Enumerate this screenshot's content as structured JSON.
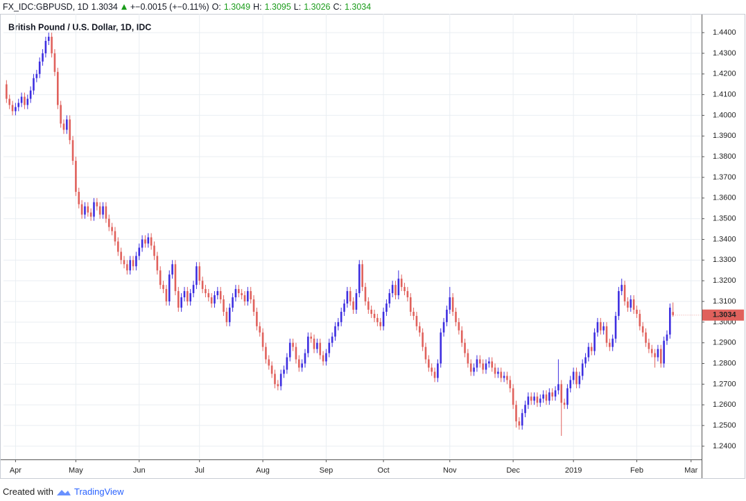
{
  "header": {
    "symbol": "FX_IDC:GBPUSD, 1D",
    "change": "+−0.0015 (+−0.11%)",
    "o_label": "O:",
    "h_label": "H:",
    "l_label": "L:",
    "c_label": "C:"
  },
  "footer": {
    "text": "Created with",
    "brand": "TradingView"
  },
  "chart_data": {
    "type": "candlestick",
    "title": "British Pound / U.S. Dollar, 1D, IDC",
    "up_color": "#3d2ee0",
    "down_color": "#e0615c",
    "grid": true,
    "xlim": [
      -1,
      230.5
    ],
    "ylim": [
      1.2336,
      1.4484
    ],
    "xticks": [
      {
        "value": 3,
        "label": "Apr"
      },
      {
        "value": 23,
        "label": "May"
      },
      {
        "value": 44,
        "label": "Jun"
      },
      {
        "value": 64,
        "label": "Jul"
      },
      {
        "value": 85,
        "label": "Aug"
      },
      {
        "value": 106,
        "label": "Sep"
      },
      {
        "value": 125,
        "label": "Oct"
      },
      {
        "value": 147,
        "label": "Nov"
      },
      {
        "value": 168,
        "label": "Dec"
      },
      {
        "value": 188,
        "label": "2019"
      },
      {
        "value": 209,
        "label": "Feb"
      },
      {
        "value": 227,
        "label": "Mar"
      }
    ],
    "yticks": [
      {
        "value": 1.24,
        "label": "1.2400"
      },
      {
        "value": 1.25,
        "label": "1.2500"
      },
      {
        "value": 1.26,
        "label": "1.2600"
      },
      {
        "value": 1.27,
        "label": "1.2700"
      },
      {
        "value": 1.28,
        "label": "1.2800"
      },
      {
        "value": 1.29,
        "label": "1.2900"
      },
      {
        "value": 1.3,
        "label": "1.3000"
      },
      {
        "value": 1.31,
        "label": "1.3100"
      },
      {
        "value": 1.32,
        "label": "1.3200"
      },
      {
        "value": 1.33,
        "label": "1.3300"
      },
      {
        "value": 1.34,
        "label": "1.3400"
      },
      {
        "value": 1.35,
        "label": "1.3500"
      },
      {
        "value": 1.36,
        "label": "1.3600"
      },
      {
        "value": 1.37,
        "label": "1.3700"
      },
      {
        "value": 1.38,
        "label": "1.3800"
      },
      {
        "value": 1.39,
        "label": "1.3900"
      },
      {
        "value": 1.4,
        "label": "1.4000"
      },
      {
        "value": 1.41,
        "label": "1.4100"
      },
      {
        "value": 1.42,
        "label": "1.4200"
      },
      {
        "value": 1.43,
        "label": "1.4300"
      },
      {
        "value": 1.44,
        "label": "1.4400"
      }
    ],
    "ohlc": [
      [
        1.415,
        1.417,
        1.406,
        1.408
      ],
      [
        1.408,
        1.41,
        1.403,
        1.405
      ],
      [
        1.405,
        1.407,
        1.4,
        1.402
      ],
      [
        1.402,
        1.406,
        1.4,
        1.404
      ],
      [
        1.404,
        1.408,
        1.402,
        1.406
      ],
      [
        1.406,
        1.411,
        1.404,
        1.409
      ],
      [
        1.409,
        1.411,
        1.403,
        1.405
      ],
      [
        1.405,
        1.41,
        1.403,
        1.408
      ],
      [
        1.408,
        1.414,
        1.406,
        1.412
      ],
      [
        1.412,
        1.42,
        1.41,
        1.418
      ],
      [
        1.418,
        1.422,
        1.416,
        1.42
      ],
      [
        1.42,
        1.428,
        1.418,
        1.426
      ],
      [
        1.426,
        1.432,
        1.424,
        1.43
      ],
      [
        1.43,
        1.438,
        1.428,
        1.436
      ],
      [
        1.436,
        1.44,
        1.434,
        1.438
      ],
      [
        1.438,
        1.44,
        1.428,
        1.43
      ],
      [
        1.43,
        1.432,
        1.419,
        1.421
      ],
      [
        1.421,
        1.423,
        1.403,
        1.405
      ],
      [
        1.405,
        1.407,
        1.394,
        1.396
      ],
      [
        1.396,
        1.398,
        1.391,
        1.393
      ],
      [
        1.393,
        1.4,
        1.391,
        1.398
      ],
      [
        1.398,
        1.4,
        1.386,
        1.388
      ],
      [
        1.388,
        1.39,
        1.376,
        1.378
      ],
      [
        1.378,
        1.38,
        1.361,
        1.363
      ],
      [
        1.363,
        1.365,
        1.355,
        1.357
      ],
      [
        1.357,
        1.359,
        1.35,
        1.352
      ],
      [
        1.352,
        1.358,
        1.35,
        1.356
      ],
      [
        1.356,
        1.358,
        1.351,
        1.353
      ],
      [
        1.353,
        1.355,
        1.349,
        1.351
      ],
      [
        1.351,
        1.36,
        1.349,
        1.358
      ],
      [
        1.358,
        1.36,
        1.354,
        1.356
      ],
      [
        1.356,
        1.358,
        1.35,
        1.352
      ],
      [
        1.352,
        1.358,
        1.35,
        1.356
      ],
      [
        1.356,
        1.358,
        1.348,
        1.35
      ],
      [
        1.35,
        1.352,
        1.344,
        1.346
      ],
      [
        1.346,
        1.348,
        1.342,
        1.344
      ],
      [
        1.344,
        1.346,
        1.337,
        1.339
      ],
      [
        1.339,
        1.341,
        1.332,
        1.334
      ],
      [
        1.334,
        1.336,
        1.328,
        1.33
      ],
      [
        1.33,
        1.332,
        1.326,
        1.328
      ],
      [
        1.328,
        1.33,
        1.323,
        1.325
      ],
      [
        1.325,
        1.332,
        1.323,
        1.33
      ],
      [
        1.33,
        1.332,
        1.325,
        1.327
      ],
      [
        1.327,
        1.334,
        1.325,
        1.332
      ],
      [
        1.332,
        1.338,
        1.33,
        1.336
      ],
      [
        1.336,
        1.342,
        1.334,
        1.34
      ],
      [
        1.34,
        1.342,
        1.336,
        1.338
      ],
      [
        1.338,
        1.343,
        1.336,
        1.341
      ],
      [
        1.341,
        1.343,
        1.335,
        1.337
      ],
      [
        1.337,
        1.339,
        1.33,
        1.332
      ],
      [
        1.332,
        1.334,
        1.323,
        1.325
      ],
      [
        1.325,
        1.327,
        1.316,
        1.318
      ],
      [
        1.318,
        1.32,
        1.314,
        1.316
      ],
      [
        1.316,
        1.318,
        1.308,
        1.31
      ],
      [
        1.31,
        1.325,
        1.308,
        1.323
      ],
      [
        1.323,
        1.33,
        1.321,
        1.328
      ],
      [
        1.328,
        1.33,
        1.313,
        1.315
      ],
      [
        1.315,
        1.317,
        1.305,
        1.307
      ],
      [
        1.307,
        1.314,
        1.305,
        1.312
      ],
      [
        1.312,
        1.317,
        1.31,
        1.315
      ],
      [
        1.315,
        1.317,
        1.308,
        1.31
      ],
      [
        1.31,
        1.316,
        1.308,
        1.314
      ],
      [
        1.314,
        1.32,
        1.312,
        1.318
      ],
      [
        1.318,
        1.329,
        1.316,
        1.327
      ],
      [
        1.327,
        1.329,
        1.318,
        1.32
      ],
      [
        1.32,
        1.322,
        1.314,
        1.316
      ],
      [
        1.316,
        1.318,
        1.312,
        1.314
      ],
      [
        1.314,
        1.316,
        1.31,
        1.312
      ],
      [
        1.312,
        1.314,
        1.307,
        1.309
      ],
      [
        1.309,
        1.315,
        1.307,
        1.313
      ],
      [
        1.313,
        1.317,
        1.311,
        1.315
      ],
      [
        1.315,
        1.317,
        1.309,
        1.311
      ],
      [
        1.311,
        1.313,
        1.303,
        1.305
      ],
      [
        1.305,
        1.307,
        1.298,
        1.3
      ],
      [
        1.3,
        1.309,
        1.298,
        1.307
      ],
      [
        1.307,
        1.314,
        1.305,
        1.312
      ],
      [
        1.312,
        1.318,
        1.31,
        1.316
      ],
      [
        1.316,
        1.318,
        1.312,
        1.314
      ],
      [
        1.314,
        1.316,
        1.311,
        1.313
      ],
      [
        1.313,
        1.315,
        1.308,
        1.31
      ],
      [
        1.31,
        1.317,
        1.308,
        1.315
      ],
      [
        1.315,
        1.317,
        1.309,
        1.311
      ],
      [
        1.311,
        1.313,
        1.303,
        1.305
      ],
      [
        1.305,
        1.307,
        1.296,
        1.298
      ],
      [
        1.298,
        1.3,
        1.293,
        1.295
      ],
      [
        1.295,
        1.297,
        1.286,
        1.288
      ],
      [
        1.288,
        1.29,
        1.28,
        1.282
      ],
      [
        1.282,
        1.284,
        1.277,
        1.279
      ],
      [
        1.279,
        1.281,
        1.273,
        1.275
      ],
      [
        1.275,
        1.277,
        1.268,
        1.27
      ],
      [
        1.27,
        1.272,
        1.267,
        1.269
      ],
      [
        1.269,
        1.277,
        1.267,
        1.275
      ],
      [
        1.275,
        1.279,
        1.273,
        1.277
      ],
      [
        1.277,
        1.285,
        1.275,
        1.283
      ],
      [
        1.283,
        1.292,
        1.281,
        1.29
      ],
      [
        1.29,
        1.292,
        1.286,
        1.288
      ],
      [
        1.288,
        1.29,
        1.28,
        1.282
      ],
      [
        1.282,
        1.284,
        1.276,
        1.278
      ],
      [
        1.278,
        1.282,
        1.276,
        1.28
      ],
      [
        1.28,
        1.287,
        1.278,
        1.285
      ],
      [
        1.285,
        1.295,
        1.283,
        1.293
      ],
      [
        1.293,
        1.295,
        1.29,
        1.292
      ],
      [
        1.292,
        1.294,
        1.285,
        1.287
      ],
      [
        1.287,
        1.292,
        1.285,
        1.29
      ],
      [
        1.29,
        1.292,
        1.282,
        1.284
      ],
      [
        1.284,
        1.286,
        1.279,
        1.281
      ],
      [
        1.281,
        1.287,
        1.279,
        1.285
      ],
      [
        1.285,
        1.292,
        1.283,
        1.29
      ],
      [
        1.29,
        1.295,
        1.288,
        1.293
      ],
      [
        1.293,
        1.3,
        1.291,
        1.298
      ],
      [
        1.298,
        1.302,
        1.296,
        1.3
      ],
      [
        1.3,
        1.307,
        1.298,
        1.305
      ],
      [
        1.305,
        1.311,
        1.303,
        1.309
      ],
      [
        1.309,
        1.317,
        1.307,
        1.315
      ],
      [
        1.315,
        1.317,
        1.308,
        1.31
      ],
      [
        1.31,
        1.312,
        1.304,
        1.306
      ],
      [
        1.306,
        1.316,
        1.304,
        1.314
      ],
      [
        1.314,
        1.33,
        1.312,
        1.328
      ],
      [
        1.328,
        1.33,
        1.315,
        1.317
      ],
      [
        1.317,
        1.319,
        1.308,
        1.31
      ],
      [
        1.31,
        1.312,
        1.304,
        1.306
      ],
      [
        1.306,
        1.308,
        1.302,
        1.304
      ],
      [
        1.304,
        1.306,
        1.3,
        1.302
      ],
      [
        1.302,
        1.304,
        1.298,
        1.3
      ],
      [
        1.3,
        1.302,
        1.296,
        1.298
      ],
      [
        1.298,
        1.307,
        1.296,
        1.305
      ],
      [
        1.305,
        1.311,
        1.303,
        1.309
      ],
      [
        1.309,
        1.316,
        1.307,
        1.314
      ],
      [
        1.314,
        1.32,
        1.312,
        1.318
      ],
      [
        1.318,
        1.32,
        1.311,
        1.313
      ],
      [
        1.313,
        1.325,
        1.311,
        1.321
      ],
      [
        1.321,
        1.323,
        1.315,
        1.317
      ],
      [
        1.317,
        1.319,
        1.313,
        1.315
      ],
      [
        1.315,
        1.317,
        1.31,
        1.312
      ],
      [
        1.312,
        1.314,
        1.303,
        1.305
      ],
      [
        1.305,
        1.307,
        1.301,
        1.303
      ],
      [
        1.303,
        1.305,
        1.296,
        1.298
      ],
      [
        1.298,
        1.3,
        1.293,
        1.295
      ],
      [
        1.295,
        1.297,
        1.286,
        1.288
      ],
      [
        1.288,
        1.29,
        1.28,
        1.282
      ],
      [
        1.282,
        1.284,
        1.276,
        1.278
      ],
      [
        1.278,
        1.28,
        1.274,
        1.276
      ],
      [
        1.276,
        1.278,
        1.271,
        1.273
      ],
      [
        1.273,
        1.282,
        1.271,
        1.28
      ],
      [
        1.28,
        1.297,
        1.278,
        1.295
      ],
      [
        1.295,
        1.302,
        1.293,
        1.3
      ],
      [
        1.3,
        1.308,
        1.298,
        1.306
      ],
      [
        1.306,
        1.317,
        1.304,
        1.312
      ],
      [
        1.312,
        1.314,
        1.303,
        1.305
      ],
      [
        1.305,
        1.307,
        1.298,
        1.3
      ],
      [
        1.3,
        1.302,
        1.294,
        1.296
      ],
      [
        1.296,
        1.298,
        1.288,
        1.29
      ],
      [
        1.29,
        1.292,
        1.283,
        1.285
      ],
      [
        1.285,
        1.287,
        1.278,
        1.28
      ],
      [
        1.28,
        1.282,
        1.274,
        1.276
      ],
      [
        1.276,
        1.28,
        1.274,
        1.278
      ],
      [
        1.278,
        1.284,
        1.276,
        1.282
      ],
      [
        1.282,
        1.284,
        1.278,
        1.28
      ],
      [
        1.28,
        1.282,
        1.275,
        1.277
      ],
      [
        1.277,
        1.282,
        1.275,
        1.28
      ],
      [
        1.28,
        1.283,
        1.278,
        1.281
      ],
      [
        1.281,
        1.283,
        1.276,
        1.278
      ],
      [
        1.278,
        1.28,
        1.273,
        1.275
      ],
      [
        1.275,
        1.278,
        1.273,
        1.276
      ],
      [
        1.276,
        1.278,
        1.271,
        1.273
      ],
      [
        1.273,
        1.276,
        1.271,
        1.274
      ],
      [
        1.274,
        1.276,
        1.27,
        1.272
      ],
      [
        1.272,
        1.274,
        1.266,
        1.268
      ],
      [
        1.268,
        1.27,
        1.258,
        1.26
      ],
      [
        1.26,
        1.262,
        1.249,
        1.252
      ],
      [
        1.252,
        1.254,
        1.248,
        1.25
      ],
      [
        1.25,
        1.258,
        1.248,
        1.256
      ],
      [
        1.256,
        1.262,
        1.254,
        1.26
      ],
      [
        1.26,
        1.266,
        1.258,
        1.264
      ],
      [
        1.264,
        1.266,
        1.26,
        1.262
      ],
      [
        1.262,
        1.266,
        1.26,
        1.264
      ],
      [
        1.264,
        1.266,
        1.259,
        1.261
      ],
      [
        1.261,
        1.265,
        1.259,
        1.263
      ],
      [
        1.263,
        1.267,
        1.261,
        1.265
      ],
      [
        1.265,
        1.267,
        1.26,
        1.262
      ],
      [
        1.262,
        1.268,
        1.26,
        1.266
      ],
      [
        1.266,
        1.268,
        1.262,
        1.264
      ],
      [
        1.264,
        1.269,
        1.262,
        1.267
      ],
      [
        1.267,
        1.282,
        1.265,
        1.27
      ],
      [
        1.27,
        1.272,
        1.245,
        1.261
      ],
      [
        1.261,
        1.263,
        1.258,
        1.26
      ],
      [
        1.26,
        1.27,
        1.258,
        1.268
      ],
      [
        1.268,
        1.274,
        1.266,
        1.272
      ],
      [
        1.272,
        1.278,
        1.27,
        1.276
      ],
      [
        1.276,
        1.278,
        1.268,
        1.27
      ],
      [
        1.27,
        1.276,
        1.268,
        1.274
      ],
      [
        1.274,
        1.282,
        1.272,
        1.28
      ],
      [
        1.28,
        1.285,
        1.278,
        1.283
      ],
      [
        1.283,
        1.29,
        1.281,
        1.288
      ],
      [
        1.288,
        1.29,
        1.284,
        1.286
      ],
      [
        1.286,
        1.297,
        1.284,
        1.295
      ],
      [
        1.295,
        1.302,
        1.293,
        1.3
      ],
      [
        1.3,
        1.302,
        1.294,
        1.296
      ],
      [
        1.296,
        1.3,
        1.294,
        1.298
      ],
      [
        1.298,
        1.3,
        1.288,
        1.29
      ],
      [
        1.29,
        1.292,
        1.286,
        1.288
      ],
      [
        1.288,
        1.294,
        1.286,
        1.292
      ],
      [
        1.292,
        1.305,
        1.29,
        1.303
      ],
      [
        1.303,
        1.317,
        1.301,
        1.315
      ],
      [
        1.315,
        1.321,
        1.313,
        1.318
      ],
      [
        1.318,
        1.32,
        1.308,
        1.31
      ],
      [
        1.31,
        1.312,
        1.305,
        1.307
      ],
      [
        1.307,
        1.313,
        1.305,
        1.311
      ],
      [
        1.311,
        1.313,
        1.304,
        1.306
      ],
      [
        1.306,
        1.308,
        1.302,
        1.304
      ],
      [
        1.304,
        1.306,
        1.296,
        1.298
      ],
      [
        1.298,
        1.3,
        1.293,
        1.295
      ],
      [
        1.295,
        1.297,
        1.288,
        1.29
      ],
      [
        1.29,
        1.292,
        1.285,
        1.287
      ],
      [
        1.287,
        1.289,
        1.283,
        1.285
      ],
      [
        1.285,
        1.287,
        1.278,
        1.283
      ],
      [
        1.283,
        1.289,
        1.281,
        1.287
      ],
      [
        1.287,
        1.289,
        1.278,
        1.28
      ],
      [
        1.28,
        1.293,
        1.278,
        1.291
      ],
      [
        1.291,
        1.296,
        1.289,
        1.294
      ],
      [
        1.294,
        1.309,
        1.292,
        1.307
      ],
      [
        1.3049,
        1.3095,
        1.3026,
        1.3034
      ]
    ]
  }
}
